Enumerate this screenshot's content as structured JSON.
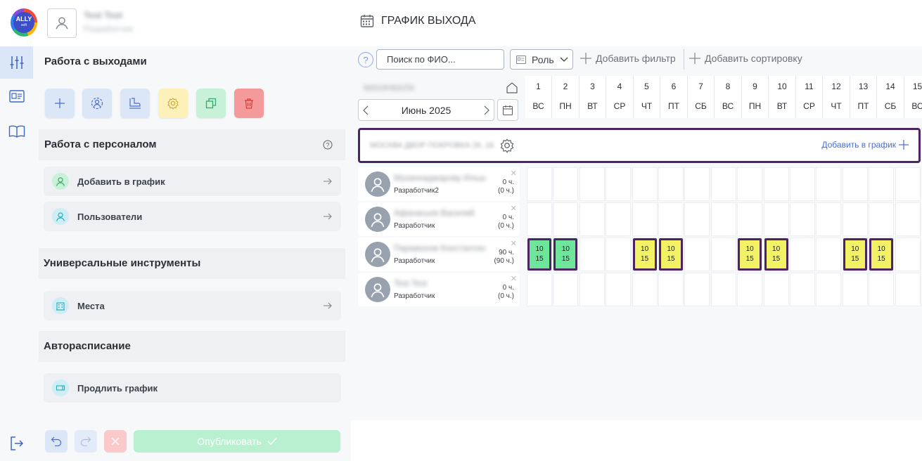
{
  "header": {
    "logo_text": "ALLY",
    "logo_sub": "soft",
    "user_name": "Test Test",
    "user_role": "Разработчик",
    "page_title": "ГРАФИК ВЫХОДА"
  },
  "rail": {
    "items": [
      "sliders-icon",
      "id-card-icon",
      "book-icon"
    ],
    "logout_icon": "logout-icon"
  },
  "panel": {
    "section_shifts": "Работа с выходами",
    "section_staff": "Работа с персоналом",
    "staff_items": [
      {
        "label": "Добавить в график",
        "icon": "user-icon"
      },
      {
        "label": "Пользователи",
        "icon": "users-icon"
      }
    ],
    "section_tools": "Универсальные инструменты",
    "tools_items": [
      {
        "label": "Места",
        "icon": "building-icon"
      }
    ],
    "section_auto": "Авторасписание",
    "auto_items": [
      {
        "label": "Продлить график",
        "icon": "extend-icon"
      }
    ],
    "tool_buttons": [
      {
        "icon": "plus-icon",
        "color": "#dbe6f7"
      },
      {
        "icon": "user-circle-icon",
        "color": "#dbe6f7"
      },
      {
        "icon": "stamp-icon",
        "color": "#dbe6f7"
      },
      {
        "icon": "gear-icon",
        "color": "#fdf0b8"
      },
      {
        "icon": "copy-icon",
        "color": "#c8f2d8"
      },
      {
        "icon": "trash-icon",
        "color": "#f59a9a"
      }
    ]
  },
  "bottom": {
    "publish_label": "Опубликовать"
  },
  "toolbar": {
    "help": "?",
    "search_placeholder": "Поиск по ФИО...",
    "role_label": "Роль",
    "add_filter": "Добавить фильтр",
    "add_sort": "Добавить сортировку"
  },
  "schedule": {
    "department": "МАХАЧКАЛА",
    "month": "Июнь 2025",
    "days": [
      {
        "n": "1",
        "d": "ВС"
      },
      {
        "n": "2",
        "d": "ПН"
      },
      {
        "n": "3",
        "d": "ВТ"
      },
      {
        "n": "4",
        "d": "СР"
      },
      {
        "n": "5",
        "d": "ЧТ"
      },
      {
        "n": "6",
        "d": "ПТ"
      },
      {
        "n": "7",
        "d": "СБ"
      },
      {
        "n": "8",
        "d": "ВС"
      },
      {
        "n": "9",
        "d": "ПН"
      },
      {
        "n": "10",
        "d": "ВТ"
      },
      {
        "n": "11",
        "d": "СР"
      },
      {
        "n": "12",
        "d": "ЧТ"
      },
      {
        "n": "13",
        "d": "ПТ"
      },
      {
        "n": "14",
        "d": "СБ"
      },
      {
        "n": "15",
        "d": "ВС"
      }
    ],
    "group_name": "МОСКВА ДВОР ПОКРОВКА 26, 18",
    "add_to_graph": "Добавить в график",
    "employees": [
      {
        "name": "Муханнаджарову Ильшат",
        "role": "Разработчик2",
        "hours": "0 ч.",
        "hours_plan": "(0 ч.)"
      },
      {
        "name": "Афанасьев Василий",
        "role": "Разработчик",
        "hours": "0 ч.",
        "hours_plan": "(0 ч.)"
      },
      {
        "name": "Парамонов Константин",
        "role": "Разработчик",
        "hours": "90 ч.",
        "hours_plan": "(90 ч.)"
      },
      {
        "name": "Test Test",
        "role": "Разработчик",
        "hours": "0 ч.",
        "hours_plan": "(0 ч.)"
      }
    ],
    "shifts": [
      {
        "row": 2,
        "day": 1,
        "start": "10",
        "end": "15",
        "color": "green"
      },
      {
        "row": 2,
        "day": 2,
        "start": "10",
        "end": "15",
        "color": "green"
      },
      {
        "row": 2,
        "day": 5,
        "start": "10",
        "end": "15",
        "color": "yellow"
      },
      {
        "row": 2,
        "day": 6,
        "start": "10",
        "end": "15",
        "color": "yellow"
      },
      {
        "row": 2,
        "day": 9,
        "start": "10",
        "end": "15",
        "color": "yellow"
      },
      {
        "row": 2,
        "day": 10,
        "start": "10",
        "end": "15",
        "color": "yellow"
      },
      {
        "row": 2,
        "day": 13,
        "start": "10",
        "end": "15",
        "color": "yellow"
      },
      {
        "row": 2,
        "day": 14,
        "start": "10",
        "end": "15",
        "color": "yellow"
      }
    ]
  }
}
